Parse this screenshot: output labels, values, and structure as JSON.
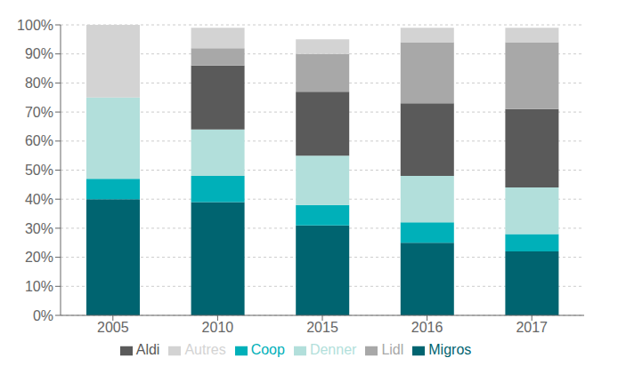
{
  "chart_data": {
    "type": "bar",
    "stacked": true,
    "grid": true,
    "legend": "bottom",
    "categories": [
      "2005",
      "2010",
      "2015",
      "2016",
      "2017"
    ],
    "series": [
      {
        "name": "Migros",
        "color": "#006470",
        "values": [
          40,
          39,
          31,
          25,
          22
        ]
      },
      {
        "name": "Coop",
        "color": "#00B0B9",
        "values": [
          7,
          9,
          7,
          7,
          6
        ]
      },
      {
        "name": "Denner",
        "color": "#B2DFDB",
        "values": [
          28,
          16,
          17,
          16,
          16
        ]
      },
      {
        "name": "Aldi",
        "color": "#5A5A5A",
        "values": [
          0,
          22,
          22,
          25,
          27
        ]
      },
      {
        "name": "Lidl",
        "color": "#A8A8A8",
        "values": [
          0,
          6,
          13,
          21,
          23
        ]
      },
      {
        "name": "Autres",
        "color": "#D3D3D3",
        "values": [
          25,
          7,
          5,
          5,
          5
        ]
      }
    ],
    "ylim": [
      0,
      100
    ],
    "yticks": [
      {
        "value": 0,
        "label": "0%"
      },
      {
        "value": 10,
        "label": "10%"
      },
      {
        "value": 20,
        "label": "20%"
      },
      {
        "value": 30,
        "label": "30%"
      },
      {
        "value": 40,
        "label": "40%"
      },
      {
        "value": 50,
        "label": "50%"
      },
      {
        "value": 60,
        "label": "60%"
      },
      {
        "value": 70,
        "label": "70%"
      },
      {
        "value": 80,
        "label": "80%"
      },
      {
        "value": 90,
        "label": "90%"
      },
      {
        "value": 100,
        "label": "100%"
      }
    ]
  }
}
